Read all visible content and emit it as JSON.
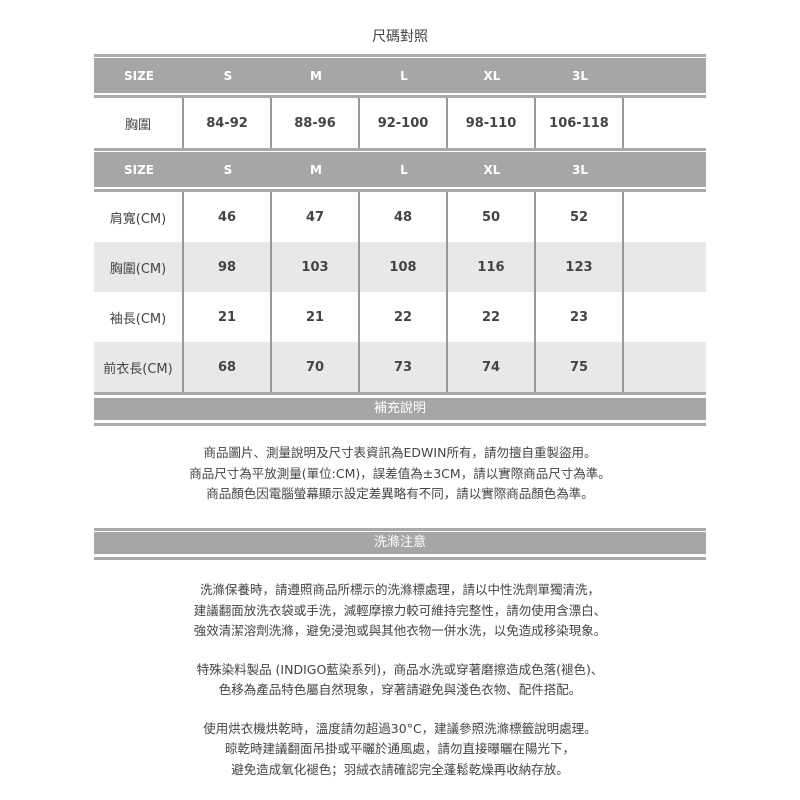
{
  "title": "尺碼對照",
  "table1": {
    "header": [
      "SIZE",
      "S",
      "M",
      "L",
      "XL",
      "3L"
    ],
    "rows": [
      [
        "胸圍",
        "84-92",
        "88-96",
        "92-100",
        "98-110",
        "106-118"
      ]
    ]
  },
  "table2": {
    "header": [
      "SIZE",
      "S",
      "M",
      "L",
      "XL",
      "3L"
    ],
    "rows": [
      [
        "肩寬(CM)",
        "46",
        "47",
        "48",
        "50",
        "52"
      ],
      [
        "胸圍(CM)",
        "98",
        "103",
        "108",
        "116",
        "123"
      ],
      [
        "袖長(CM)",
        "21",
        "21",
        "22",
        "22",
        "23"
      ],
      [
        "前衣長(CM)",
        "68",
        "70",
        "73",
        "74",
        "75"
      ]
    ]
  },
  "notes": {
    "heading": "補充說明",
    "lines": [
      "商品圖片、測量說明及尺寸表資訊為EDWIN所有，請勿擅自重製盜用。",
      "商品尺寸為平放測量(單位:CM)，誤差值為±3CM，請以實際商品尺寸為準。",
      "商品顏色因電腦螢幕顯示設定差異略有不同，請以實際商品顏色為準。"
    ]
  },
  "wash": {
    "heading": "洗滌注意",
    "paragraphs": [
      [
        "洗滌保養時，請遵照商品所標示的洗滌標處理，請以中性洗劑單獨清洗，",
        "建議翻面放洗衣袋或手洗，減輕摩擦力較可維持完整性，請勿使用含漂白、",
        "強效清潔溶劑洗滌，避免浸泡或與其他衣物一併水洗，以免造成移染現象。"
      ],
      [
        "特殊染料製品 (INDIGO藍染系列)，商品水洗或穿著磨擦造成色落(褪色)、",
        "色移為產品特色屬自然現象，穿著請避免與淺色衣物、配件搭配。"
      ],
      [
        "使用烘衣機烘乾時，溫度請勿超過30°C，建議參照洗滌標籤說明處理。",
        "晾乾時建議翻面吊掛或平曬於通風處，請勿直接曝曬在陽光下，",
        "避免造成氧化褪色；羽絨衣請確認完全蓬鬆乾燥再收納存放。"
      ]
    ]
  }
}
